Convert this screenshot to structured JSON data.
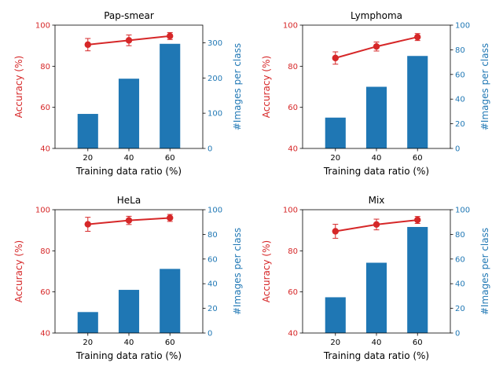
{
  "colors": {
    "accuracy": "#d62728",
    "images": "#1f77b4",
    "axis": "#000000",
    "background": "#ffffff"
  },
  "chart_data": [
    {
      "type": "bar+line",
      "title": "Pap-smear",
      "xlabel": "Training data ratio (%)",
      "ylabel_left": "Accuracy (%)",
      "ylabel_right": "#Images per class",
      "categories": [
        "20",
        "40",
        "60"
      ],
      "accuracy": {
        "values": [
          90.5,
          92.6,
          94.7
        ],
        "errors": [
          3.0,
          2.6,
          1.7
        ],
        "ylim": [
          40,
          100
        ],
        "ticks": [
          40,
          60,
          80,
          100
        ]
      },
      "images": {
        "values": [
          98,
          198,
          297
        ],
        "ylim": [
          0,
          350
        ],
        "ticks": [
          0,
          100,
          200,
          300
        ]
      },
      "grid": false
    },
    {
      "type": "bar+line",
      "title": "Lymphoma",
      "xlabel": "Training data ratio (%)",
      "ylabel_left": "Accuracy (%)",
      "ylabel_right": "#Images per class",
      "categories": [
        "20",
        "40",
        "60"
      ],
      "accuracy": {
        "values": [
          84.0,
          89.6,
          94.2
        ],
        "errors": [
          3.0,
          2.2,
          1.7
        ],
        "ylim": [
          40,
          100
        ],
        "ticks": [
          40,
          60,
          80,
          100
        ]
      },
      "images": {
        "values": [
          25,
          50,
          75
        ],
        "ylim": [
          0,
          100
        ],
        "ticks": [
          0,
          20,
          40,
          60,
          80,
          100
        ]
      },
      "grid": false
    },
    {
      "type": "bar+line",
      "title": "HeLa",
      "xlabel": "Training data ratio (%)",
      "ylabel_left": "Accuracy (%)",
      "ylabel_right": "#Images per class",
      "categories": [
        "20",
        "40",
        "60"
      ],
      "accuracy": {
        "values": [
          92.9,
          94.8,
          96.0
        ],
        "errors": [
          3.4,
          2.0,
          1.7
        ],
        "ylim": [
          40,
          100
        ],
        "ticks": [
          40,
          60,
          80,
          100
        ]
      },
      "images": {
        "values": [
          17,
          35,
          52
        ],
        "ylim": [
          0,
          100
        ],
        "ticks": [
          0,
          20,
          40,
          60,
          80,
          100
        ]
      },
      "grid": false
    },
    {
      "type": "bar+line",
      "title": "Mix",
      "xlabel": "Training data ratio (%)",
      "ylabel_left": "Accuracy (%)",
      "ylabel_right": "#Images per class",
      "categories": [
        "20",
        "40",
        "60"
      ],
      "accuracy": {
        "values": [
          89.5,
          92.8,
          95.0
        ],
        "errors": [
          3.4,
          2.6,
          1.7
        ],
        "ylim": [
          40,
          100
        ],
        "ticks": [
          40,
          60,
          80,
          100
        ]
      },
      "images": {
        "values": [
          29,
          57,
          86
        ],
        "ylim": [
          0,
          100
        ],
        "ticks": [
          0,
          20,
          40,
          60,
          80,
          100
        ]
      },
      "grid": false
    }
  ]
}
